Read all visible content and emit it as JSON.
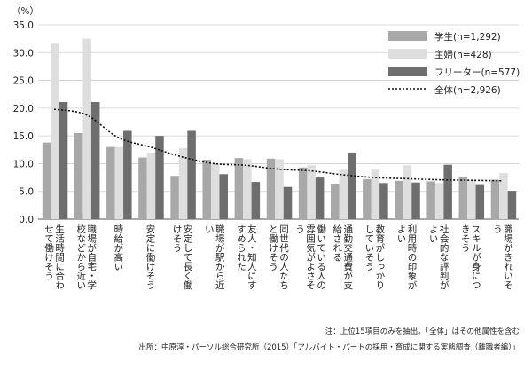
{
  "chart_data": {
    "type": "bar",
    "y_unit": "（%）",
    "ylim": [
      0,
      35
    ],
    "yticks": [
      "0.0",
      "5.0",
      "10.0",
      "15.0",
      "20.0",
      "25.0",
      "30.0",
      "35.0"
    ],
    "grid": true,
    "legend_position": "top-right",
    "categories": [
      "生活時間に合わせて働けそう",
      "職場が自宅・学校などから近い",
      "時給が高い",
      "安定に働けそう",
      "安定して長く働けそう",
      "職場が駅から近い",
      "友人・知人にすすめられた",
      "同世代の人たちと働けそう",
      "働いている人の雰囲気がよさそう",
      "通勤交通費が支給される",
      "教育がしっかりしていそう",
      "利用時の印象がよい",
      "社会的な評判がよい",
      "スキルが身につきそう",
      "職場がきれいそう"
    ],
    "series": [
      {
        "name": "学生(n=1,292)",
        "color": "#a8a8a8",
        "values": [
          13.8,
          15.5,
          13.0,
          11.1,
          7.8,
          10.7,
          11.0,
          10.9,
          9.3,
          6.4,
          7.2,
          6.9,
          6.8,
          7.6,
          7.1
        ]
      },
      {
        "name": "主婦(n=428)",
        "color": "#dedede",
        "values": [
          31.6,
          32.5,
          13.0,
          12.0,
          12.8,
          10.0,
          10.8,
          10.8,
          9.7,
          8.9,
          8.9,
          9.7,
          6.5,
          7.0,
          8.3
        ]
      },
      {
        "name": "フリーター(n=577)",
        "color": "#6e6e6e",
        "values": [
          21.1,
          21.1,
          15.9,
          15.0,
          15.9,
          8.1,
          6.7,
          5.8,
          7.5,
          12.0,
          6.5,
          6.6,
          9.8,
          6.3,
          5.1
        ]
      },
      {
        "name": "全体(n=2,926)",
        "style": "dotted-line",
        "color": "#111111",
        "values": [
          19.8,
          18.8,
          14.7,
          13.0,
          11.2,
          10.0,
          9.7,
          9.0,
          8.7,
          8.0,
          7.5,
          7.3,
          7.1,
          7.0,
          6.9
        ]
      }
    ]
  },
  "notes": {
    "note1": "注：上位15項目のみを抽出。「全体」はその他属性を含む",
    "source": "出所：中原淳・パーソル総合研究所（2015）「アルバイト・パートの採用・育成に関する実態調査（離職者編）」"
  }
}
